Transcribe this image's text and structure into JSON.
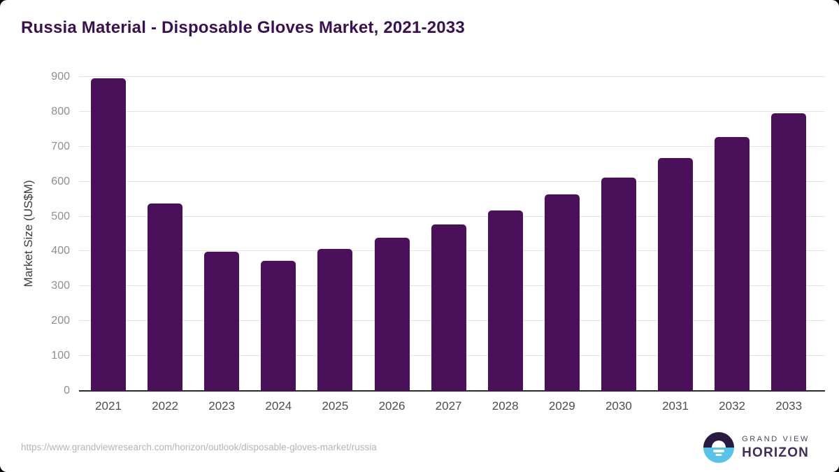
{
  "title": "Russia Material - Disposable Gloves Market, 2021-2033",
  "footer": {
    "source_url": "https://www.grandviewresearch.com/horizon/outlook/disposable-gloves-market/russia",
    "logo": {
      "name": "grand-view-horizon-logo",
      "top_text": "GRAND VIEW",
      "bottom_text": "HORIZON"
    }
  },
  "colors": {
    "bar": "#4A1059",
    "title_text": "#3A1052",
    "gridline": "#E4E4E4",
    "axis_line": "#2B2B2B",
    "y_tick_text": "#8F8F8F",
    "x_tick_text": "#4D4D4D",
    "source_url_text": "#B5B5B5",
    "logo_dark": "#2A1A42",
    "logo_blue": "#56C3EA"
  },
  "chart_data": {
    "type": "bar",
    "title": "Russia Material - Disposable Gloves Market, 2021-2033",
    "categories": [
      "2021",
      "2022",
      "2023",
      "2024",
      "2025",
      "2026",
      "2027",
      "2028",
      "2029",
      "2030",
      "2031",
      "2032",
      "2033"
    ],
    "values": [
      897,
      538,
      398,
      373,
      406,
      440,
      478,
      518,
      564,
      611,
      667,
      728,
      795
    ],
    "xlabel": "",
    "ylabel": "Market Size (US$M)",
    "ylim": [
      0,
      900
    ],
    "ytick_step": 100,
    "grid": true,
    "legend": "none",
    "bar_color": "#4A1059"
  }
}
